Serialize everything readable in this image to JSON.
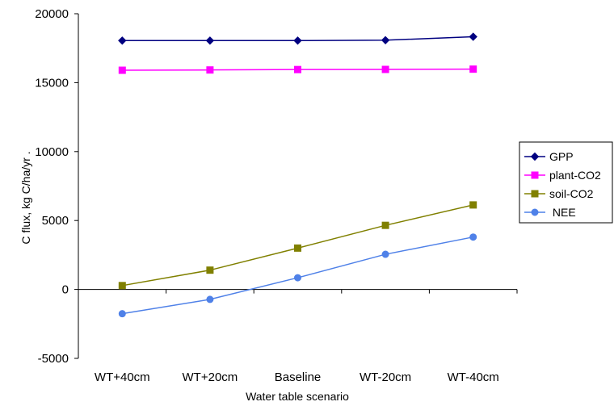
{
  "chart_data": {
    "type": "line",
    "title": "",
    "xlabel": "Water table scenario",
    "ylabel": "C flux, kg C/ha/yr .",
    "categories": [
      "WT+40cm",
      "WT+20cm",
      "Baseline",
      "WT-20cm",
      "WT-40cm"
    ],
    "ylim": [
      -5000,
      20000
    ],
    "yticks": [
      -5000,
      0,
      5000,
      10000,
      15000,
      20000
    ],
    "ytick_labels": [
      "-5000",
      "0",
      "5000",
      "10000",
      "15000",
      "20000"
    ],
    "grid": false,
    "legend_position": "right",
    "series": [
      {
        "name": "GPP",
        "values": [
          18050,
          18050,
          18050,
          18080,
          18330
        ],
        "color": "#000080",
        "marker": "diamond"
      },
      {
        "name": "plant-CO2",
        "values": [
          15900,
          15920,
          15950,
          15960,
          15980
        ],
        "color": "#ff00ff",
        "marker": "square"
      },
      {
        "name": "soil-CO2",
        "values": [
          280,
          1400,
          3000,
          4650,
          6130
        ],
        "color": "#808000",
        "marker": "square"
      },
      {
        "name": " NEE",
        "values": [
          -1760,
          -720,
          850,
          2550,
          3800
        ],
        "color": "#4f81e8",
        "marker": "circle"
      }
    ]
  }
}
